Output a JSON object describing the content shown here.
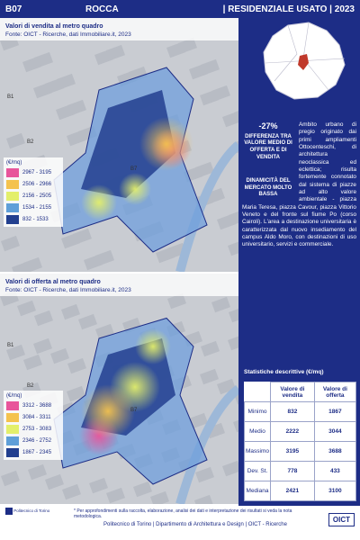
{
  "header": {
    "code": "B07",
    "name": "ROCCA",
    "category": "| RESIDENZIALE USATO | 2023"
  },
  "maps": [
    {
      "title": "Valori di vendita al metro quadro",
      "source": "Fonte: OICT - Ricerche, dati Immobiliare.it, 2023",
      "legend_title": "(€/mq)",
      "labels": [
        "B1",
        "B2",
        "B7"
      ],
      "legend": [
        {
          "label": "2967 - 3195",
          "color": "#e8559b"
        },
        {
          "label": "2506 - 2966",
          "color": "#f4c24e"
        },
        {
          "label": "2156 - 2505",
          "color": "#e3ef6b"
        },
        {
          "label": "1534 - 2155",
          "color": "#5f9fd8"
        },
        {
          "label": "832 - 1533",
          "color": "#23408f"
        }
      ]
    },
    {
      "title": "Valori di offerta al metro quadro",
      "source": "Fonte: OICT - Ricerche, dati Immobiliare.it, 2023",
      "legend_title": "(€/mq)",
      "labels": [
        "B1",
        "B2",
        "B7"
      ],
      "legend": [
        {
          "label": "3312 - 3688",
          "color": "#e8559b"
        },
        {
          "label": "3084 - 3311",
          "color": "#f4c24e"
        },
        {
          "label": "2753 - 3083",
          "color": "#e3ef6b"
        },
        {
          "label": "2346 - 2752",
          "color": "#5f9fd8"
        },
        {
          "label": "1867 - 2345",
          "color": "#23408f"
        }
      ]
    }
  ],
  "side": {
    "stat_value": "-27%",
    "stat_label": "DIFFERENZA TRA VALORE MEDIO DI OFFERTA E DI VENDITA",
    "market_label": "DINAMICITÀ DEL MERCATO MOLTO BASSA",
    "description": "Ambito urbano di pregio originato dai primi ampliamenti Ottocenteschi, di architettura neoclassica ed eclettica; risulta fortemente connotato dal sistema di piazze ad alto valore ambientale - piazza Maria Teresa, piazza Cavour, piazza Vittorio Veneto e del fronte sul fiume Po (corso Cairoli). L'area a destinazione universitaria è caratterizzata dal nuovo insediamento del campus Aldo Moro, con destinazioni di uso universitario, servizi e commerciale."
  },
  "table": {
    "title": "Statistiche descrittive (€/mq)",
    "columns": [
      "Valore di vendita",
      "Valore di offerta"
    ],
    "rows": [
      [
        "Minimo",
        "832",
        "1867"
      ],
      [
        "Medio",
        "2222",
        "3044"
      ],
      [
        "Massimo",
        "3195",
        "3688"
      ],
      [
        "Dev. St.",
        "778",
        "433"
      ],
      [
        "Mediana",
        "2421",
        "3100"
      ]
    ]
  },
  "footer": {
    "note": "* Per approfondimenti sulla raccolta, elaborazione, analisi dei dati e interpretazione dei risultati si veda la nota metodologica.",
    "credits": "Politecnico di Torino | Dipartimento di Architettura e Design | OICT - Ricerche",
    "logo_left": "Politecnico di Torino",
    "logo_right": "OICT"
  }
}
